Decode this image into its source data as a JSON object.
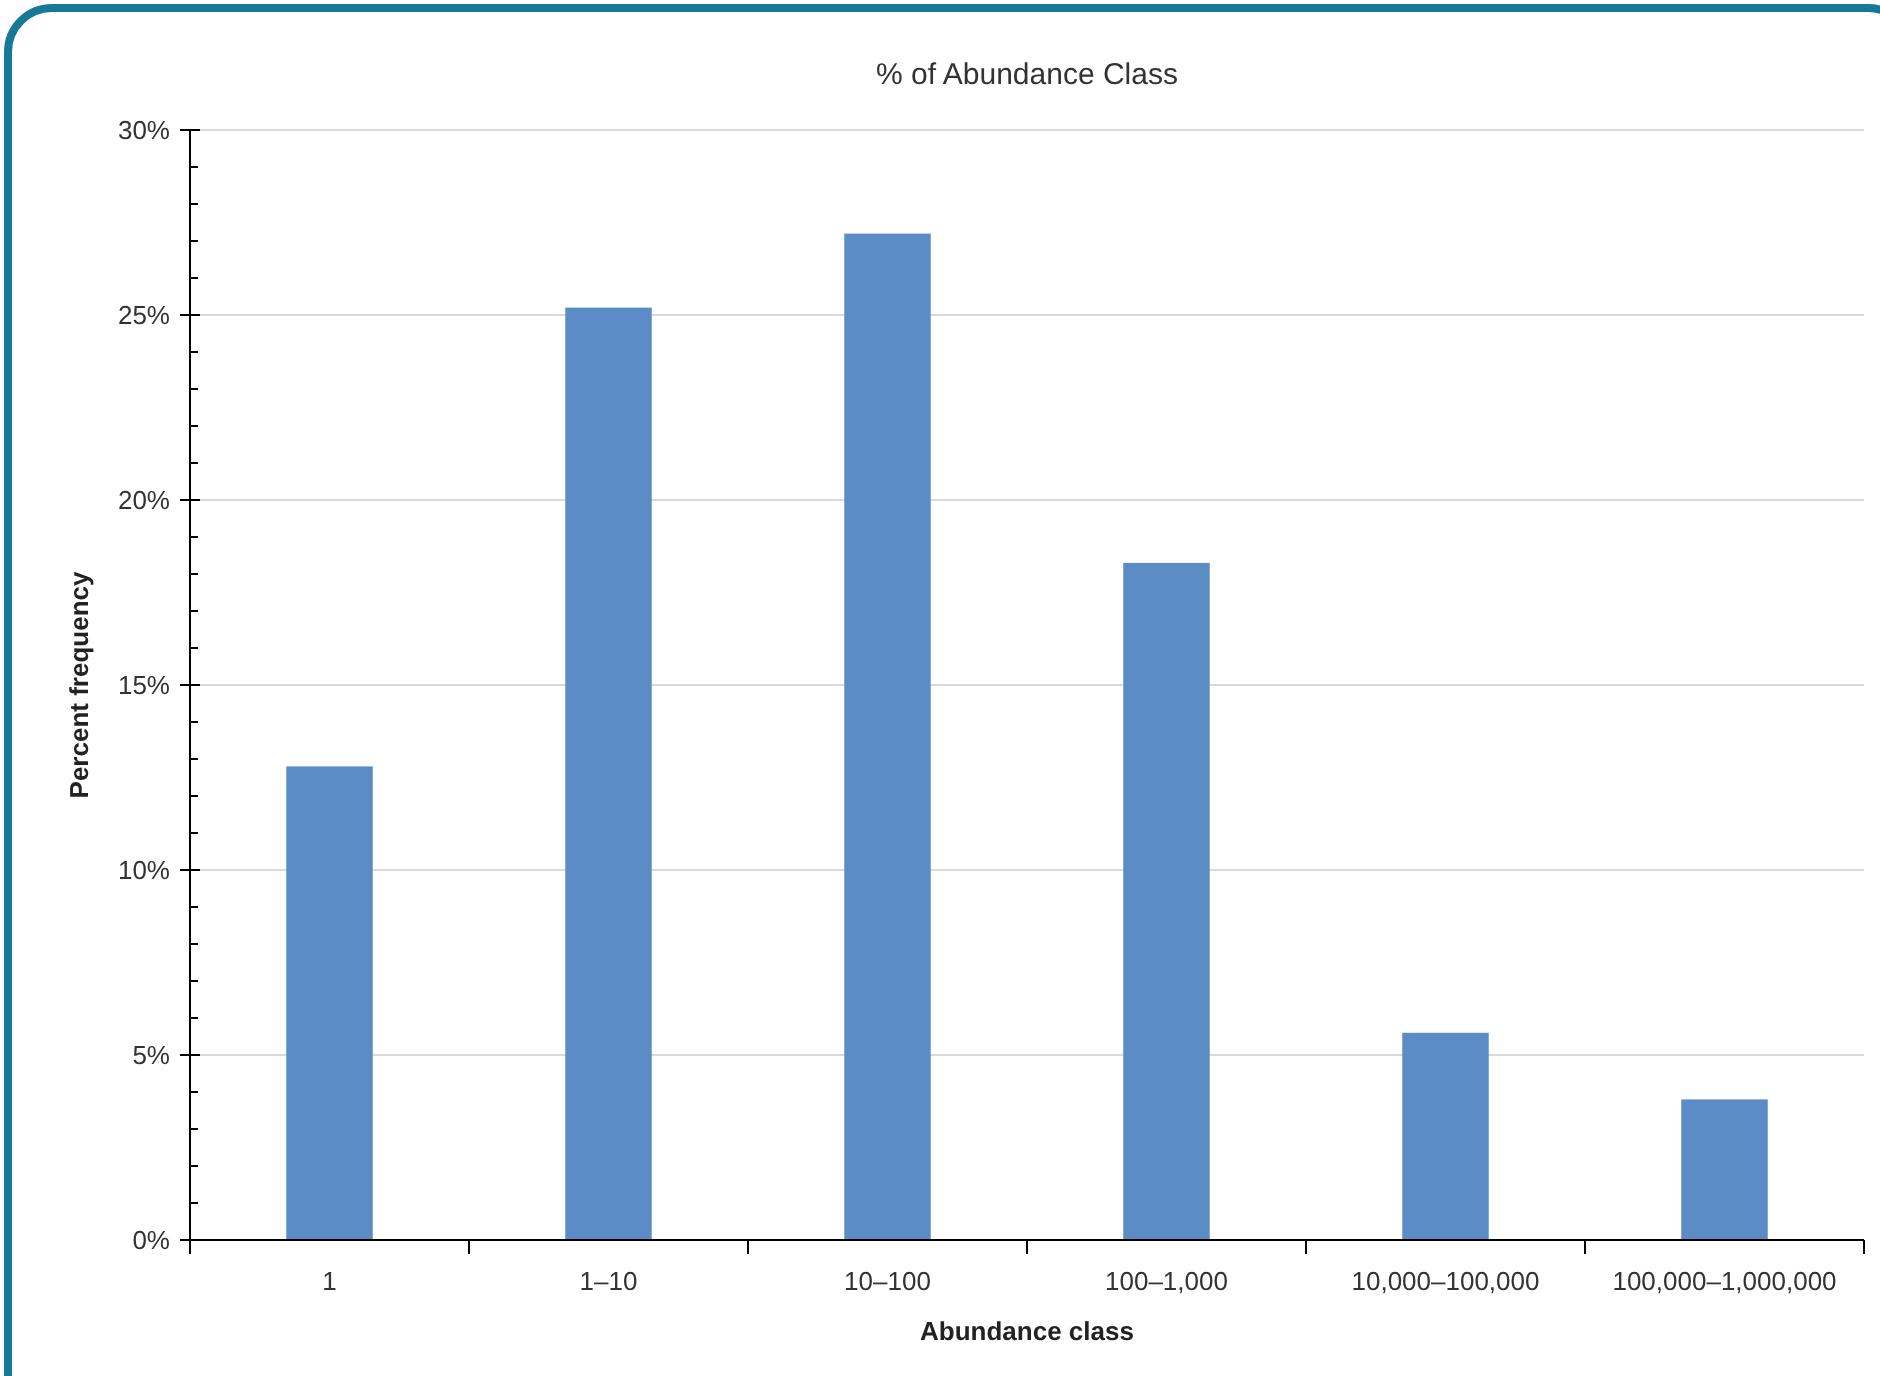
{
  "chart_data": {
    "type": "bar",
    "title": "% of Abundance Class",
    "xlabel": "Abundance class",
    "ylabel": "Percent frequency",
    "categories": [
      "1",
      "1–10",
      "10–100",
      "100–1,000",
      "10,000–100,000",
      "100,000–1,000,000"
    ],
    "values": [
      12.8,
      25.2,
      27.2,
      18.3,
      5.6,
      3.8
    ],
    "color": "#5b8cc5",
    "ylim": [
      0,
      30
    ],
    "yticks": [
      {
        "value": 0,
        "label": "0%"
      },
      {
        "value": 5,
        "label": "5%"
      },
      {
        "value": 10,
        "label": "10%"
      },
      {
        "value": 15,
        "label": "15%"
      },
      {
        "value": 20,
        "label": "20%"
      },
      {
        "value": 25,
        "label": "25%"
      },
      {
        "value": 30,
        "label": "30%"
      }
    ],
    "grid": "y"
  }
}
